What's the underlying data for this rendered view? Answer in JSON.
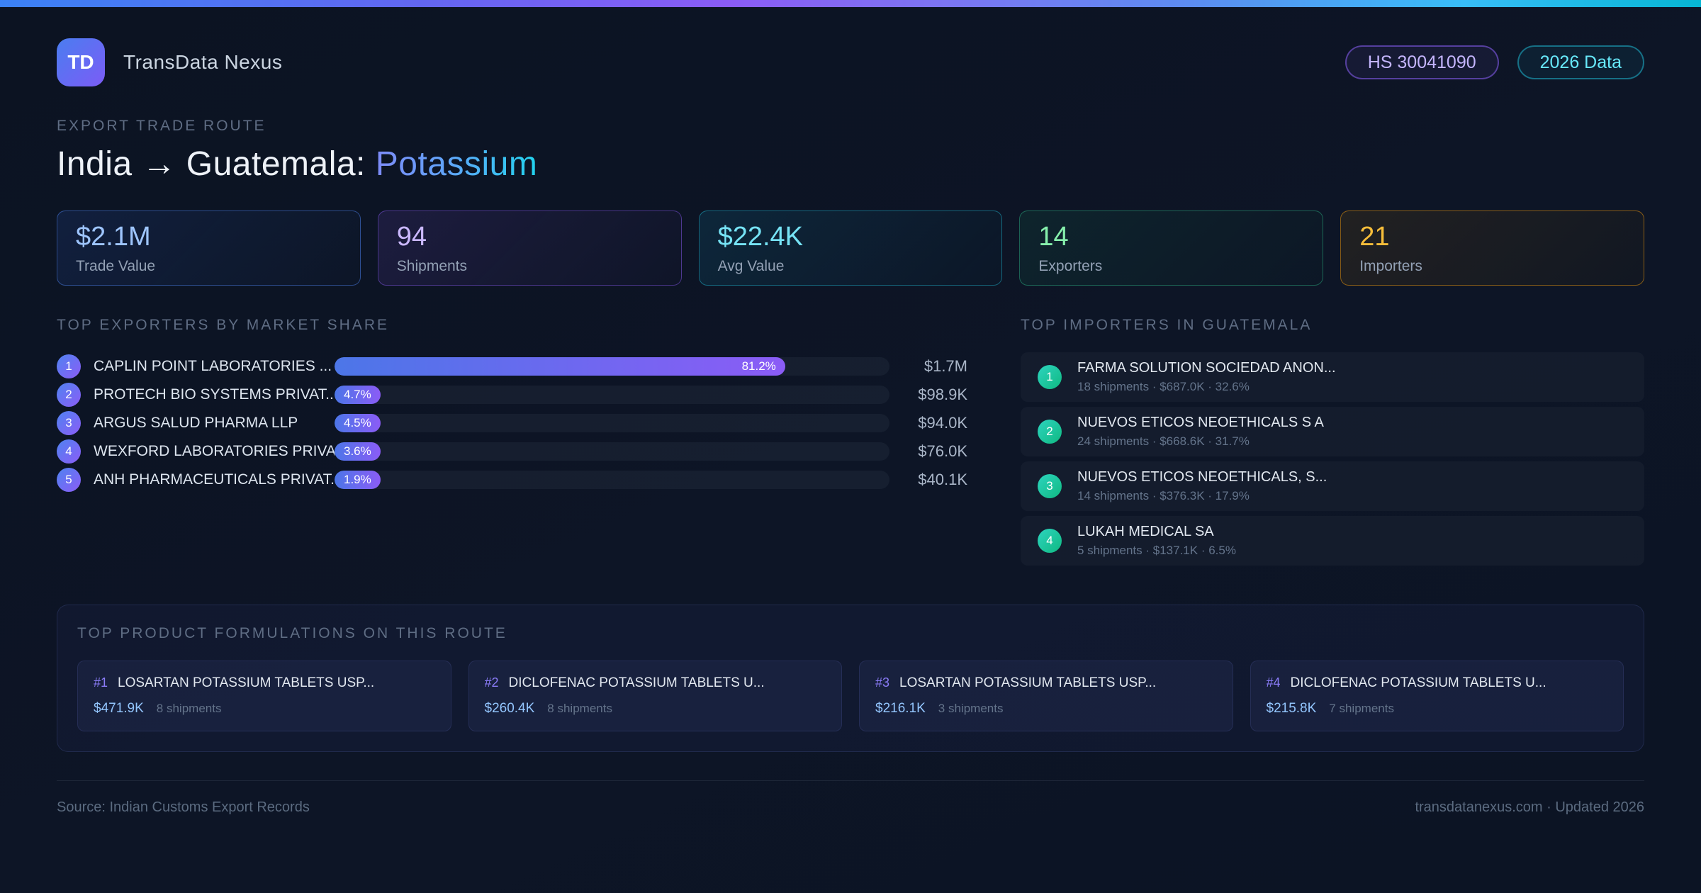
{
  "palette": {
    "accent_blue": "#3b82f6",
    "accent_purple": "#8b5cf6",
    "accent_cyan": "#06b6d4",
    "accent_green": "#34d399",
    "accent_amber": "#f59e0b",
    "background": "#0c1322"
  },
  "header": {
    "logo_text": "TD",
    "app_name": "TransData Nexus",
    "hs_badge": "HS 30041090",
    "year_badge": "2026 Data"
  },
  "hero": {
    "eyebrow": "EXPORT TRADE ROUTE",
    "title_main": "India → Guatemala: ",
    "title_accent": "Potassium"
  },
  "stats": [
    {
      "value": "$2.1M",
      "label": "Trade Value"
    },
    {
      "value": "94",
      "label": "Shipments"
    },
    {
      "value": "$22.4K",
      "label": "Avg Value"
    },
    {
      "value": "14",
      "label": "Exporters"
    },
    {
      "value": "21",
      "label": "Importers"
    }
  ],
  "exporters": {
    "heading": "TOP EXPORTERS BY MARKET SHARE",
    "rows": [
      {
        "rank": "1",
        "name": "CAPLIN POINT LABORATORIES ...",
        "share_label": "81.2%",
        "share_pct": 81.2,
        "value": "$1.7M"
      },
      {
        "rank": "2",
        "name": "PROTECH BIO SYSTEMS PRIVAT...",
        "share_label": "4.7%",
        "share_pct": 4.7,
        "value": "$98.9K"
      },
      {
        "rank": "3",
        "name": "ARGUS SALUD PHARMA LLP",
        "share_label": "4.5%",
        "share_pct": 4.5,
        "value": "$94.0K"
      },
      {
        "rank": "4",
        "name": "WEXFORD LABORATORIES PRIVA...",
        "share_label": "3.6%",
        "share_pct": 3.6,
        "value": "$76.0K"
      },
      {
        "rank": "5",
        "name": "ANH PHARMACEUTICALS PRIVAT...",
        "share_label": "1.9%",
        "share_pct": 1.9,
        "value": "$40.1K"
      }
    ]
  },
  "importers": {
    "heading": "TOP IMPORTERS IN GUATEMALA",
    "rows": [
      {
        "rank": "1",
        "name": "FARMA SOLUTION SOCIEDAD ANON...",
        "meta": "18 shipments · $687.0K · 32.6%"
      },
      {
        "rank": "2",
        "name": "NUEVOS ETICOS NEOETHICALS S A",
        "meta": "24 shipments · $668.6K · 31.7%"
      },
      {
        "rank": "3",
        "name": "NUEVOS ETICOS NEOETHICALS, S...",
        "meta": "14 shipments · $376.3K · 17.9%"
      },
      {
        "rank": "4",
        "name": "LUKAH MEDICAL SA",
        "meta": "5 shipments · $137.1K · 6.5%"
      }
    ]
  },
  "products": {
    "heading": "TOP PRODUCT FORMULATIONS ON THIS ROUTE",
    "cards": [
      {
        "rank": "#1",
        "name": "LOSARTAN POTASSIUM TABLETS USP...",
        "value": "$471.9K",
        "shipments": "8 shipments"
      },
      {
        "rank": "#2",
        "name": "DICLOFENAC POTASSIUM TABLETS U...",
        "value": "$260.4K",
        "shipments": "8 shipments"
      },
      {
        "rank": "#3",
        "name": "LOSARTAN POTASSIUM TABLETS USP...",
        "value": "$216.1K",
        "shipments": "3 shipments"
      },
      {
        "rank": "#4",
        "name": "DICLOFENAC POTASSIUM TABLETS U...",
        "value": "$215.8K",
        "shipments": "7 shipments"
      }
    ]
  },
  "footer": {
    "source": "Source: Indian Customs Export Records",
    "site": "transdatanexus.com · Updated 2026"
  }
}
